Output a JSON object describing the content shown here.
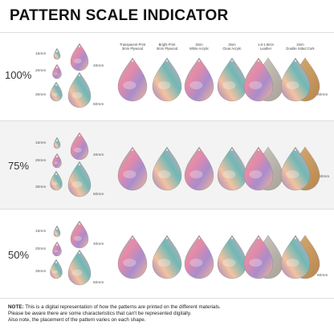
{
  "title": "PATTERN SCALE INDICATOR",
  "columns": [
    {
      "line1": "Transparent Print",
      "line2": "3mm Plywood"
    },
    {
      "line1": "Bright Print",
      "line2": "3mm Plywood"
    },
    {
      "line1": "3mm",
      "line2": "White Acrylic"
    },
    {
      "line1": "3mm",
      "line2": "Clear Acrylic"
    },
    {
      "line1": "1.6-1.8mm",
      "line2": "Leather"
    },
    {
      "line1": "2mm",
      "line2": "Double Sided Cork"
    }
  ],
  "rows": [
    {
      "percent": "100%",
      "size_a": "15mm",
      "size_b": "20mm",
      "size_c": "30mm",
      "size_d": "40mm",
      "size_e": "50mm",
      "size_f": "60mm"
    },
    {
      "percent": "75%",
      "size_a": "15mm",
      "size_b": "20mm",
      "size_c": "30mm",
      "size_d": "40mm",
      "size_e": "50mm",
      "size_f": "60mm"
    },
    {
      "percent": "50%",
      "size_a": "15mm",
      "size_b": "20mm",
      "size_c": "30mm",
      "size_d": "40mm",
      "size_e": "50mm",
      "size_f": "60mm"
    }
  ],
  "note": {
    "label": "NOTE:",
    "line1": "This is a digital representation of how the patterns are printed on the different materials.",
    "line2": "Please be aware there are some characteristics that can't be represented digitally.",
    "line3": "Also note, the placement of the pattern varies on each shape."
  },
  "colors": {
    "band": "#f3f3f3",
    "plywood": "#c9a37a",
    "cork": "#c89a62",
    "leather": "#b9b4ab",
    "pink": "#e8839f",
    "teal": "#5fb5b3",
    "purple": "#9a83c2",
    "peach": "#f0b08f"
  }
}
